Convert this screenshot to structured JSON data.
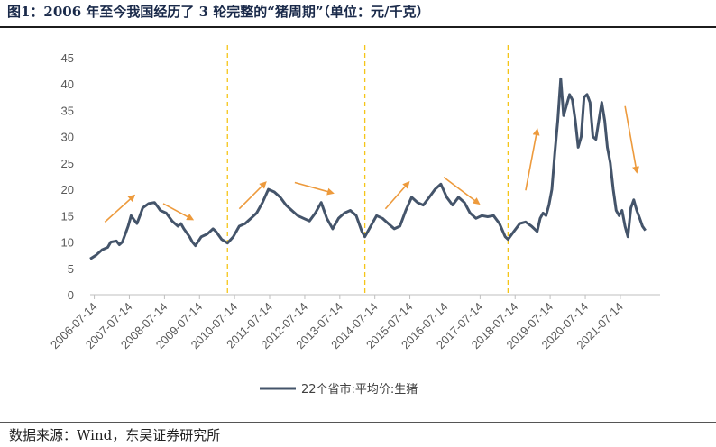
{
  "title": "图1：2006 年至今我国经历了 3 轮完整的“猪周期”（单位：元/千克）",
  "source": "数据来源：Wind，东吴证券研究所",
  "colors": {
    "series": "#44546a",
    "divider": "#f5c518",
    "arrow": "#ed9a3c",
    "axis": "#bfbfbf",
    "text": "#595959"
  },
  "chart_data": {
    "type": "line",
    "ylim": [
      0,
      45
    ],
    "yticks": [
      0,
      5,
      10,
      15,
      20,
      25,
      30,
      35,
      40,
      45
    ],
    "xlim": [
      "2006-06-01",
      "2022-09-01"
    ],
    "xticks": [
      "2006-07-14",
      "2007-07-14",
      "2008-07-14",
      "2009-07-14",
      "2010-07-14",
      "2011-07-14",
      "2012-07-14",
      "2013-07-14",
      "2014-07-14",
      "2015-07-14",
      "2016-07-14",
      "2017-07-14",
      "2018-07-14",
      "2019-07-14",
      "2020-07-14",
      "2021-07-14"
    ],
    "legend": "bottom",
    "grid": false,
    "cycle_dividers": [
      "2010-05-01",
      "2014-04-01",
      "2018-05-01"
    ],
    "trend_arrows": [
      {
        "from": [
          "2006-11-01",
          13.8
        ],
        "to": [
          "2007-09-01",
          18.8
        ]
      },
      {
        "from": [
          "2008-07-01",
          17.3
        ],
        "to": [
          "2009-05-01",
          14.3
        ]
      },
      {
        "from": [
          "2010-09-01",
          16.3
        ],
        "to": [
          "2011-06-01",
          21.3
        ]
      },
      {
        "from": [
          "2012-04-01",
          21.3
        ],
        "to": [
          "2013-05-01",
          19.3
        ]
      },
      {
        "from": [
          "2014-11-01",
          16.3
        ],
        "to": [
          "2015-07-01",
          21.3
        ]
      },
      {
        "from": [
          "2016-07-01",
          22.3
        ],
        "to": [
          "2017-07-01",
          17.3
        ]
      },
      {
        "from": [
          "2018-11-01",
          19.8
        ],
        "to": [
          "2019-03-01",
          31.3
        ]
      },
      {
        "from": [
          "2021-09-01",
          35.8
        ],
        "to": [
          "2022-01-01",
          23.3
        ]
      }
    ],
    "series": [
      {
        "name": "22个省市:平均价:生猪",
        "points": [
          [
            "2006-06-01",
            6.8
          ],
          [
            "2006-08-01",
            7.5
          ],
          [
            "2006-10-01",
            8.5
          ],
          [
            "2006-12-01",
            9.0
          ],
          [
            "2007-01-01",
            10.0
          ],
          [
            "2007-03-01",
            10.2
          ],
          [
            "2007-04-01",
            9.5
          ],
          [
            "2007-05-01",
            10.0
          ],
          [
            "2007-06-01",
            11.5
          ],
          [
            "2007-07-01",
            13.0
          ],
          [
            "2007-08-01",
            15.0
          ],
          [
            "2007-09-01",
            14.2
          ],
          [
            "2007-10-01",
            13.5
          ],
          [
            "2007-11-01",
            15.0
          ],
          [
            "2007-12-01",
            16.5
          ],
          [
            "2008-02-01",
            17.3
          ],
          [
            "2008-04-01",
            17.5
          ],
          [
            "2008-05-01",
            16.8
          ],
          [
            "2008-06-01",
            16.0
          ],
          [
            "2008-08-01",
            15.5
          ],
          [
            "2008-10-01",
            14.0
          ],
          [
            "2008-12-01",
            13.0
          ],
          [
            "2009-01-01",
            13.5
          ],
          [
            "2009-02-01",
            12.5
          ],
          [
            "2009-04-01",
            11.0
          ],
          [
            "2009-05-01",
            10.0
          ],
          [
            "2009-06-01",
            9.3
          ],
          [
            "2009-08-01",
            11.0
          ],
          [
            "2009-10-01",
            11.5
          ],
          [
            "2009-12-01",
            12.5
          ],
          [
            "2010-01-01",
            12.0
          ],
          [
            "2010-03-01",
            10.5
          ],
          [
            "2010-05-01",
            9.8
          ],
          [
            "2010-07-01",
            11.0
          ],
          [
            "2010-09-01",
            13.0
          ],
          [
            "2010-11-01",
            13.5
          ],
          [
            "2011-01-01",
            14.5
          ],
          [
            "2011-03-01",
            15.5
          ],
          [
            "2011-05-01",
            17.5
          ],
          [
            "2011-07-01",
            20.0
          ],
          [
            "2011-09-01",
            19.5
          ],
          [
            "2011-11-01",
            18.5
          ],
          [
            "2012-01-01",
            17.0
          ],
          [
            "2012-03-01",
            16.0
          ],
          [
            "2012-05-01",
            15.0
          ],
          [
            "2012-07-01",
            14.5
          ],
          [
            "2012-09-01",
            14.0
          ],
          [
            "2012-11-01",
            15.5
          ],
          [
            "2013-01-01",
            17.5
          ],
          [
            "2013-03-01",
            14.5
          ],
          [
            "2013-05-01",
            12.5
          ],
          [
            "2013-07-01",
            14.5
          ],
          [
            "2013-09-01",
            15.5
          ],
          [
            "2013-11-01",
            16.0
          ],
          [
            "2014-01-01",
            15.0
          ],
          [
            "2014-03-01",
            12.0
          ],
          [
            "2014-04-01",
            11.0
          ],
          [
            "2014-06-01",
            13.0
          ],
          [
            "2014-08-01",
            15.0
          ],
          [
            "2014-10-01",
            14.5
          ],
          [
            "2014-12-01",
            13.5
          ],
          [
            "2015-02-01",
            12.5
          ],
          [
            "2015-04-01",
            13.0
          ],
          [
            "2015-06-01",
            16.0
          ],
          [
            "2015-08-01",
            18.5
          ],
          [
            "2015-10-01",
            17.5
          ],
          [
            "2015-12-01",
            17.0
          ],
          [
            "2016-02-01",
            18.5
          ],
          [
            "2016-04-01",
            20.0
          ],
          [
            "2016-06-01",
            21.0
          ],
          [
            "2016-08-01",
            18.5
          ],
          [
            "2016-10-01",
            17.0
          ],
          [
            "2016-12-01",
            18.5
          ],
          [
            "2017-02-01",
            17.5
          ],
          [
            "2017-04-01",
            15.5
          ],
          [
            "2017-06-01",
            14.5
          ],
          [
            "2017-08-01",
            15.0
          ],
          [
            "2017-10-01",
            14.8
          ],
          [
            "2017-12-01",
            15.0
          ],
          [
            "2018-02-01",
            13.5
          ],
          [
            "2018-04-01",
            11.0
          ],
          [
            "2018-05-01",
            10.5
          ],
          [
            "2018-07-01",
            12.0
          ],
          [
            "2018-09-01",
            13.5
          ],
          [
            "2018-11-01",
            13.8
          ],
          [
            "2019-01-01",
            13.0
          ],
          [
            "2019-03-01",
            12.0
          ],
          [
            "2019-04-01",
            14.5
          ],
          [
            "2019-05-01",
            15.5
          ],
          [
            "2019-06-01",
            15.0
          ],
          [
            "2019-07-01",
            17.0
          ],
          [
            "2019-08-01",
            20.0
          ],
          [
            "2019-09-01",
            27.0
          ],
          [
            "2019-10-01",
            33.0
          ],
          [
            "2019-11-01",
            41.0
          ],
          [
            "2019-12-01",
            34.0
          ],
          [
            "2020-01-01",
            36.0
          ],
          [
            "2020-02-01",
            38.0
          ],
          [
            "2020-03-01",
            37.0
          ],
          [
            "2020-04-01",
            33.0
          ],
          [
            "2020-05-01",
            28.0
          ],
          [
            "2020-06-01",
            30.0
          ],
          [
            "2020-07-01",
            37.5
          ],
          [
            "2020-08-01",
            38.0
          ],
          [
            "2020-09-01",
            36.5
          ],
          [
            "2020-10-01",
            30.0
          ],
          [
            "2020-11-01",
            29.5
          ],
          [
            "2020-12-01",
            33.0
          ],
          [
            "2021-01-01",
            36.5
          ],
          [
            "2021-02-01",
            33.0
          ],
          [
            "2021-03-01",
            28.0
          ],
          [
            "2021-04-01",
            25.0
          ],
          [
            "2021-05-01",
            20.0
          ],
          [
            "2021-06-01",
            16.0
          ],
          [
            "2021-07-01",
            15.0
          ],
          [
            "2021-08-01",
            16.0
          ],
          [
            "2021-09-01",
            13.0
          ],
          [
            "2021-10-01",
            11.0
          ],
          [
            "2021-11-01",
            16.5
          ],
          [
            "2021-12-01",
            18.0
          ],
          [
            "2022-01-01",
            16.0
          ],
          [
            "2022-02-01",
            14.5
          ],
          [
            "2022-03-01",
            13.0
          ],
          [
            "2022-04-01",
            12.2
          ]
        ]
      }
    ]
  }
}
